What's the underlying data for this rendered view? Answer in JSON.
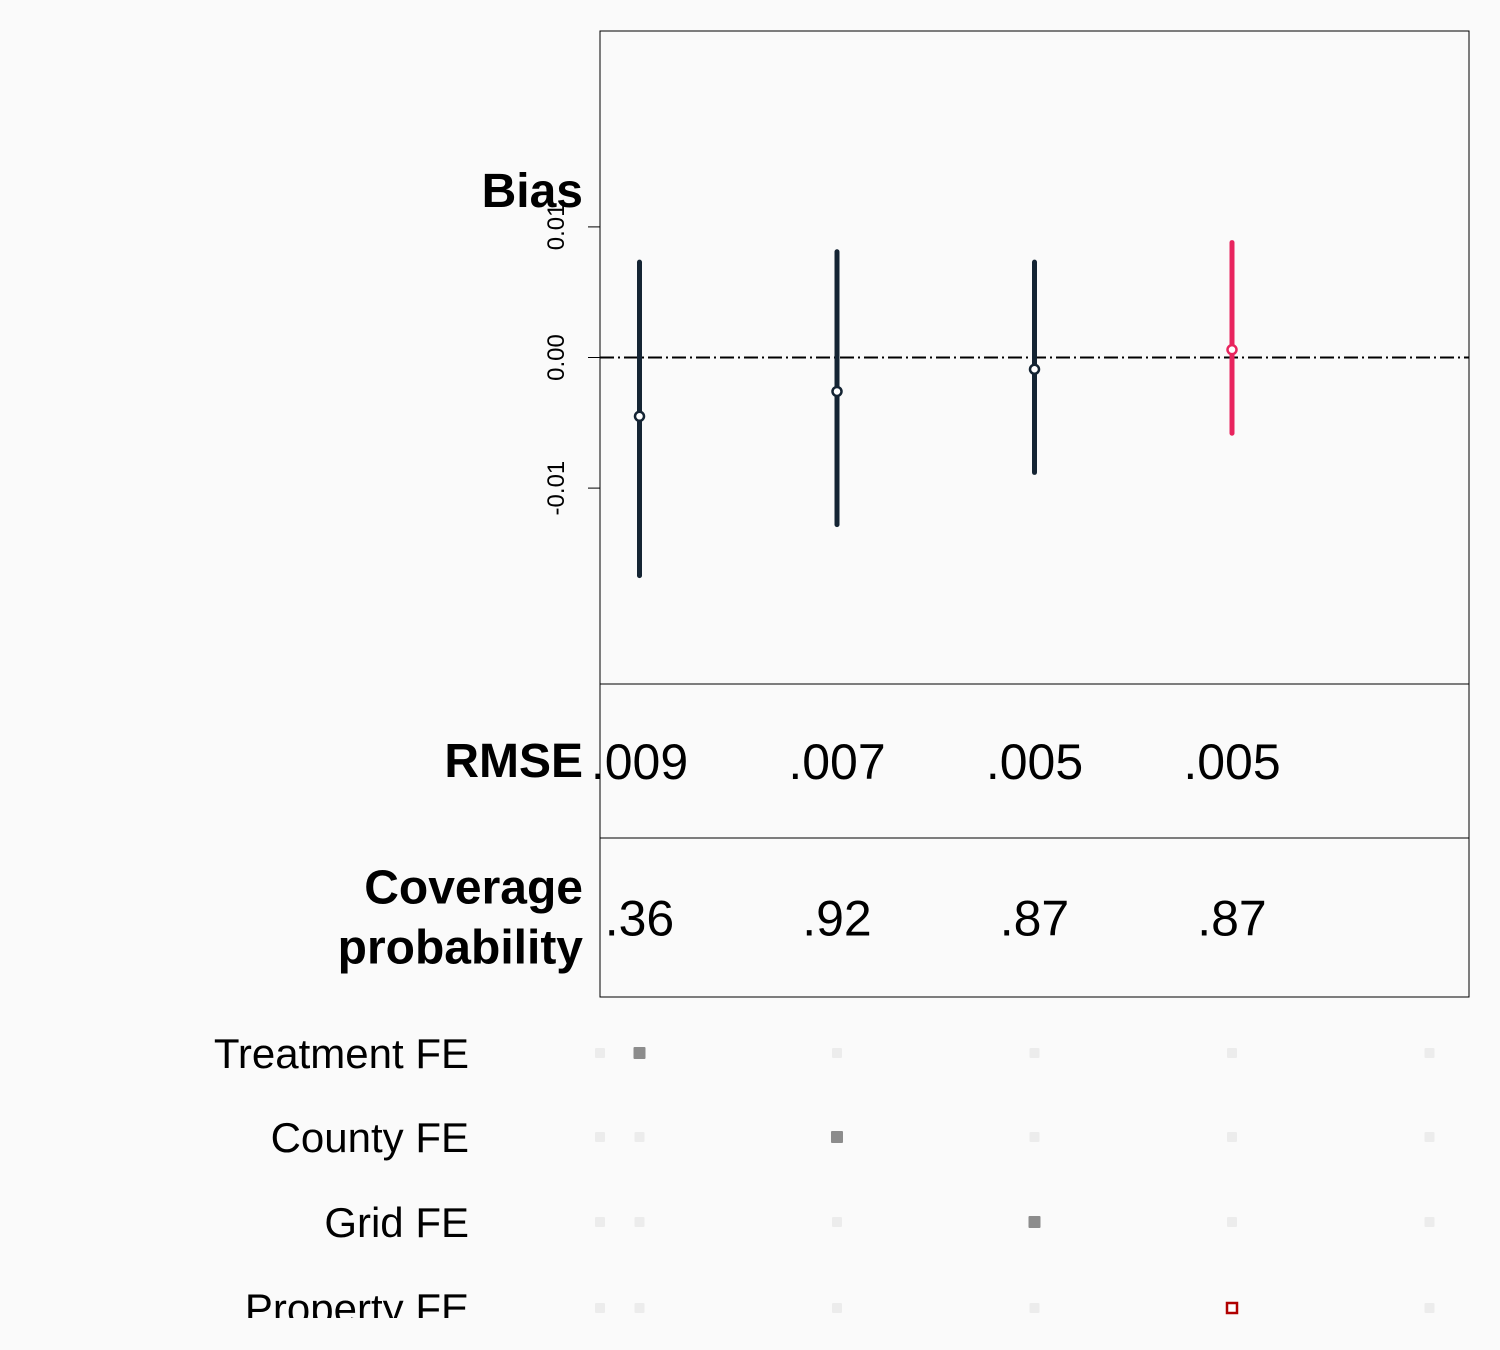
{
  "chart_data": {
    "type": "scatter",
    "variant": "coefficient-interval-plot",
    "panel_title": "Bias",
    "y_axis": {
      "ticks": [
        -0.01,
        0.0,
        0.01
      ],
      "tick_labels": [
        "-0.01",
        "0.00",
        "0.01"
      ],
      "ylim": [
        -0.025,
        0.025
      ],
      "reference_line": 0.0,
      "reference_line_style": "dashed"
    },
    "x_positions": [
      1,
      2,
      3,
      4
    ],
    "xlim": [
      0.8,
      5.2
    ],
    "estimates": [
      {
        "position": 1,
        "estimate": -0.0045,
        "lower": -0.0167,
        "upper": 0.0073,
        "color": "#142433"
      },
      {
        "position": 2,
        "estimate": -0.0026,
        "lower": -0.0128,
        "upper": 0.0081,
        "color": "#142433"
      },
      {
        "position": 3,
        "estimate": -0.0009,
        "lower": -0.0088,
        "upper": 0.0073,
        "color": "#142433"
      },
      {
        "position": 4,
        "estimate": 0.0006,
        "lower": -0.0058,
        "upper": 0.0088,
        "color": "#e8245e"
      }
    ],
    "metrics": [
      {
        "label_lines": [
          "RMSE"
        ],
        "values": [
          ".009",
          ".007",
          ".005",
          ".005"
        ]
      },
      {
        "label_lines": [
          "Coverage",
          "probability"
        ],
        "values": [
          ".36",
          ".92",
          ".87",
          ".87"
        ]
      }
    ],
    "fe_positions": [
      0.8,
      1,
      2,
      3,
      4,
      5
    ],
    "fixed_effects": [
      {
        "label": "Treatment FE",
        "active_position": 1,
        "marker": "filled-square"
      },
      {
        "label": "County FE",
        "active_position": 2,
        "marker": "filled-square"
      },
      {
        "label": "Grid FE",
        "active_position": 3,
        "marker": "filled-square"
      },
      {
        "label": "Property FE",
        "active_position": 4,
        "marker": "hollow-square"
      }
    ],
    "colors": {
      "default_series": "#142433",
      "highlight_series": "#e8245e",
      "active_marker": "#8c8c8c",
      "inactive_marker": "#ececec",
      "highlight_marker": "#b00000"
    }
  }
}
